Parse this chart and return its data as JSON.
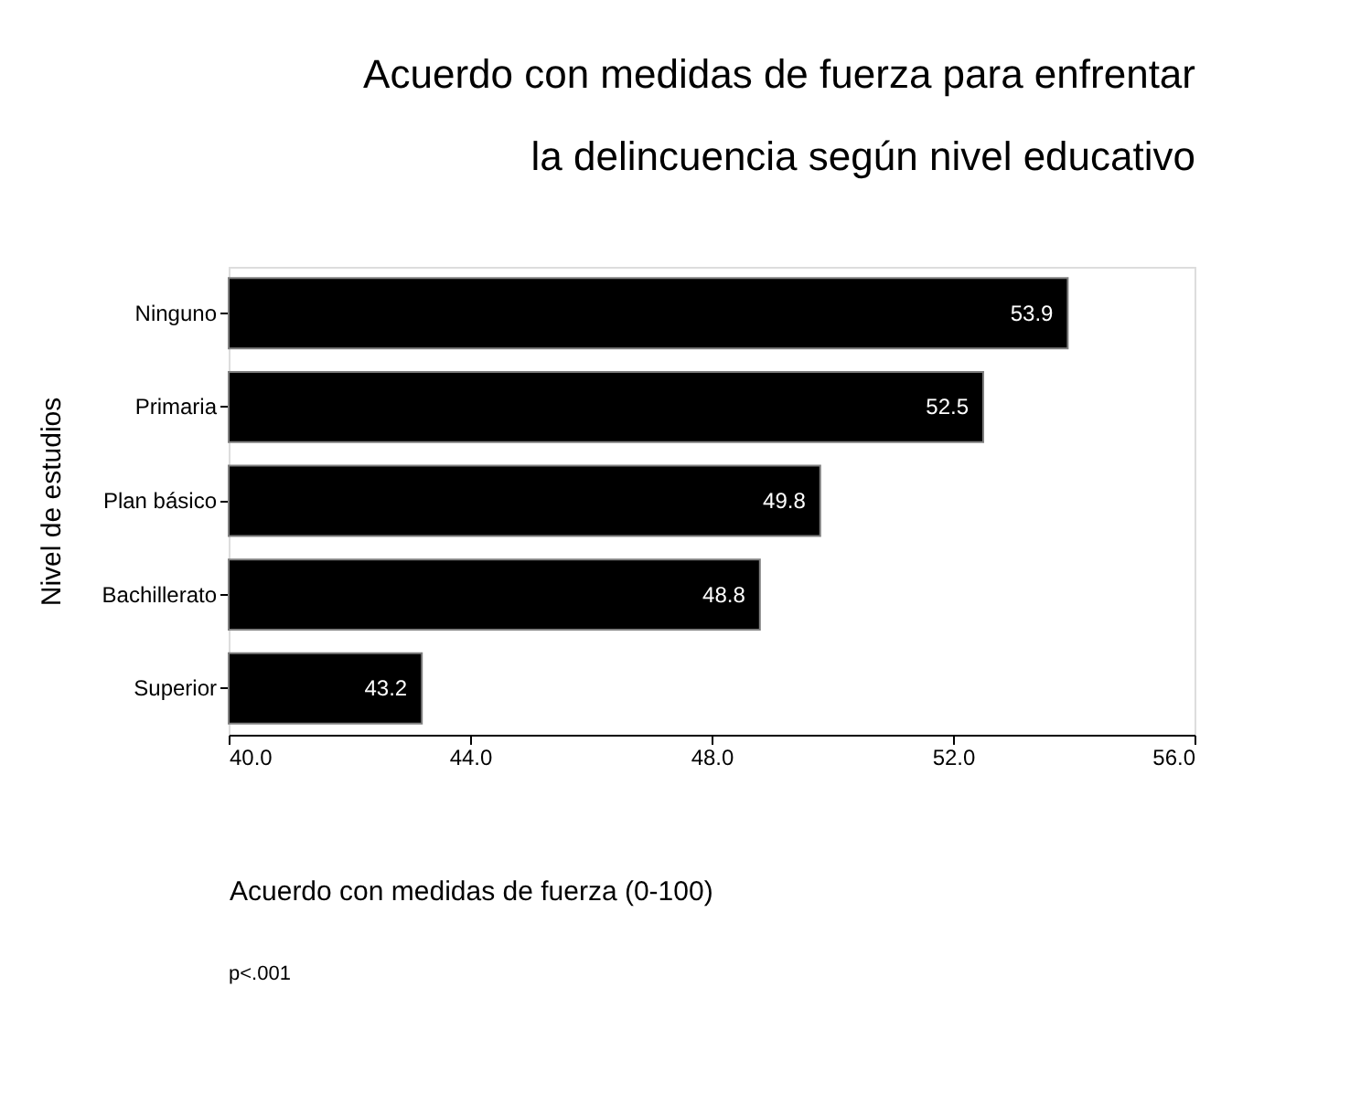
{
  "chart_data": {
    "type": "bar",
    "orientation": "horizontal",
    "title": [
      "Acuerdo con medidas de fuerza para enfrentar",
      "la delincuencia según nivel educativo"
    ],
    "xlabel": "Acuerdo con medidas de fuerza (0-100)",
    "ylabel": "Nivel de estudios",
    "categories": [
      "Ninguno",
      "Primaria",
      "Plan básico",
      "Bachillerato",
      "Superior"
    ],
    "values": [
      53.9,
      52.5,
      49.8,
      48.8,
      43.2
    ],
    "color": "#000000",
    "data_labels": true,
    "xlim": [
      40,
      56
    ],
    "xticks": [
      {
        "value": 40,
        "label": "40.0"
      },
      {
        "value": 44,
        "label": "44.0"
      },
      {
        "value": 48,
        "label": "48.0"
      },
      {
        "value": 52,
        "label": "52.0"
      },
      {
        "value": 56,
        "label": "56.0"
      }
    ],
    "grid": false,
    "annotations": [
      "p<.001"
    ]
  }
}
